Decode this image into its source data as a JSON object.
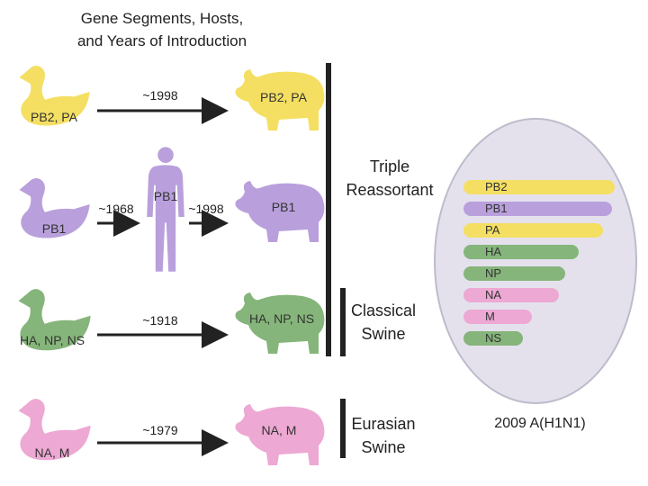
{
  "title": {
    "line1": "Gene Segments, Hosts,",
    "line2": "and Years of Introduction"
  },
  "colors": {
    "yellow": "#f4df63",
    "purple": "#b9a0dc",
    "green": "#85b57a",
    "pink": "#eda8d3",
    "ellipse": "#e4e1ed"
  },
  "rows": [
    {
      "bird_label": "PB2, PA",
      "year": "~1998",
      "pig_label": "PB2, PA"
    },
    {
      "bird_label": "PB1",
      "year_to_human": "~1968",
      "human_label": "PB1",
      "year": "~1998",
      "pig_label": "PB1"
    },
    {
      "bird_label": "HA, NP, NS",
      "year": "~1918",
      "pig_label": "HA, NP, NS"
    },
    {
      "bird_label": "NA, M",
      "year": "~1979",
      "pig_label": "NA, M"
    }
  ],
  "groups": {
    "triple": {
      "line1": "Triple",
      "line2": "Reassortant"
    },
    "classical": {
      "line1": "Classical",
      "line2": "Swine"
    },
    "eurasian": {
      "line1": "Eurasian",
      "line2": "Swine"
    }
  },
  "segments": [
    {
      "label": "PB2",
      "color": "#f4df63",
      "length": 1.0
    },
    {
      "label": "PB1",
      "color": "#b9a0dc",
      "length": 0.98
    },
    {
      "label": "PA",
      "color": "#f4df63",
      "length": 0.92
    },
    {
      "label": "HA",
      "color": "#85b57a",
      "length": 0.76
    },
    {
      "label": "NP",
      "color": "#85b57a",
      "length": 0.67
    },
    {
      "label": "NA",
      "color": "#eda8d3",
      "length": 0.63
    },
    {
      "label": "M",
      "color": "#eda8d3",
      "length": 0.45
    },
    {
      "label": "NS",
      "color": "#85b57a",
      "length": 0.39
    }
  ],
  "virus_label": "2009 A(H1N1)"
}
